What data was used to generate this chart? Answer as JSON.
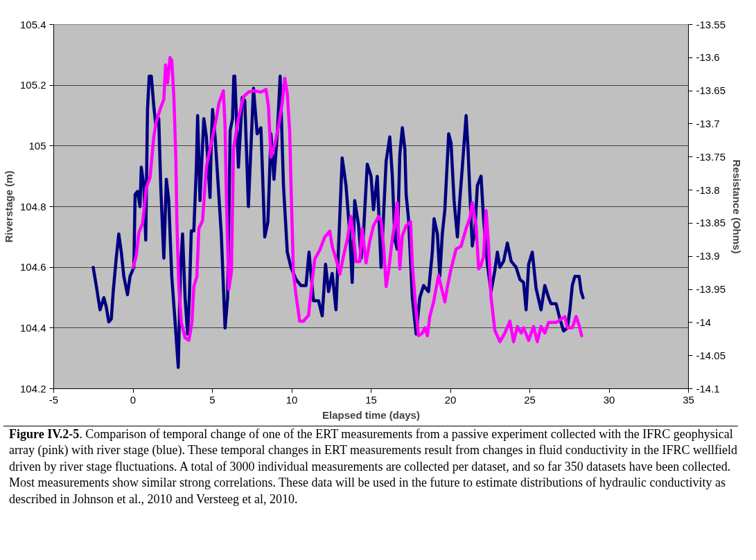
{
  "chart_data": {
    "type": "line",
    "xlabel": "Elapsed time (days)",
    "ylabel": "Riverstage (m)",
    "y2label": "Resistance (Ohms)",
    "annotations": [
      "Figure IV.2-5",
      ". Comparison of temporal change of one of the ERT measurements from a passive experiment collected with the IFRC geophysical array (pink) with river stage (blue). These temporal changes in ERT measurements result from changes in fluid conductivity in the IFRC wellfield driven by river stage fluctuations. A total of 3000 individual measurements are collected per dataset, and so far 350 datasets have been collected. Most measurements show similar strong correlations. These data will be used in the future to estimate distributions of hydraulic conductivity as described in Johnson et al., 2010 and Versteeg et al, 2010."
    ],
    "xlim": [
      -5,
      35
    ],
    "xticks": [
      -5,
      0,
      5,
      10,
      15,
      20,
      25,
      30,
      35
    ],
    "ylim": [
      104.2,
      105.4
    ],
    "yticks": [
      104.2,
      104.4,
      104.6,
      104.8,
      105,
      105.2,
      105.4
    ],
    "y2lim": [
      -14.1,
      -13.55
    ],
    "y2ticks": [
      -14.1,
      -14.05,
      -14,
      -13.95,
      -13.9,
      -13.85,
      -13.8,
      -13.75,
      -13.7,
      -13.65,
      -13.6,
      -13.55
    ],
    "grid": "y",
    "marker": "none",
    "line_style": "solid",
    "series": [
      {
        "color": "#000080",
        "axis": "y",
        "x": [
          -2.51,
          -2.32,
          -2.08,
          -1.84,
          -1.69,
          -1.53,
          -1.37,
          -1.25,
          -1.06,
          -0.9,
          -0.74,
          -0.58,
          -0.35,
          -0.19,
          0.05,
          0.13,
          0.28,
          0.44,
          0.52,
          0.68,
          0.8,
          0.91,
          1.02,
          1.15,
          1.31,
          1.43,
          1.62,
          1.75,
          1.94,
          2.1,
          2.25,
          2.44,
          2.65,
          2.85,
          2.99,
          3.12,
          3.28,
          3.44,
          3.55,
          3.67,
          3.83,
          3.99,
          4.07,
          4.22,
          4.46,
          4.62,
          4.85,
          4.93,
          5.01,
          5.17,
          5.33,
          5.56,
          5.8,
          5.96,
          6.12,
          6.27,
          6.35,
          6.41,
          6.64,
          6.88,
          7.04,
          7.27,
          7.59,
          7.82,
          8.06,
          8.3,
          8.5,
          8.69,
          8.88,
          9.09,
          9.27,
          9.48,
          9.72,
          9.95,
          10.27,
          10.58,
          10.9,
          11.09,
          11.37,
          11.69,
          11.92,
          12.13,
          12.32,
          12.55,
          12.79,
          13.03,
          13.18,
          13.42,
          13.66,
          13.81,
          13.97,
          14.21,
          14.37,
          14.52,
          14.76,
          15.0,
          15.15,
          15.39,
          15.63,
          15.95,
          16.18,
          16.34,
          16.5,
          16.65,
          16.81,
          16.97,
          17.13,
          17.21,
          17.36,
          17.6,
          17.84,
          18.07,
          18.31,
          18.62,
          18.86,
          18.97,
          19.18,
          19.33,
          19.49,
          19.65,
          19.89,
          20.04,
          20.23,
          20.44,
          20.59,
          20.75,
          20.99,
          21.11,
          21.23,
          21.38,
          21.54,
          21.7,
          21.93,
          22.09,
          22.33,
          22.56,
          22.8,
          22.96,
          23.12,
          23.35,
          23.59,
          23.83,
          24.14,
          24.38,
          24.61,
          24.77,
          24.93,
          25.16,
          25.4,
          25.71,
          25.95,
          26.19,
          26.34,
          26.66,
          26.9,
          27.13,
          27.37,
          27.53,
          27.68,
          27.84,
          28.11,
          28.24,
          28.36
        ],
        "values": [
          104.6,
          104.54,
          104.46,
          104.5,
          104.47,
          104.42,
          104.43,
          104.52,
          104.63,
          104.71,
          104.65,
          104.57,
          104.51,
          104.57,
          104.6,
          104.84,
          104.85,
          104.8,
          104.93,
          104.87,
          104.69,
          105.12,
          105.23,
          105.23,
          105.13,
          105.07,
          105.09,
          104.86,
          104.63,
          104.89,
          104.82,
          104.57,
          104.42,
          104.27,
          104.59,
          104.71,
          104.5,
          104.38,
          104.5,
          104.72,
          104.72,
          104.93,
          105.1,
          104.82,
          105.09,
          105.03,
          104.83,
          105.01,
          105.12,
          105.03,
          104.9,
          104.71,
          104.4,
          104.5,
          105.05,
          105.09,
          105.23,
          105.23,
          104.93,
          105.16,
          105.15,
          104.8,
          105.19,
          105.04,
          105.06,
          104.7,
          104.75,
          105.04,
          104.89,
          105.04,
          105.23,
          104.87,
          104.65,
          104.6,
          104.56,
          104.54,
          104.54,
          104.65,
          104.49,
          104.49,
          104.44,
          104.61,
          104.52,
          104.58,
          104.46,
          104.77,
          104.96,
          104.87,
          104.71,
          104.55,
          104.82,
          104.74,
          104.63,
          104.71,
          104.94,
          104.9,
          104.79,
          104.9,
          104.6,
          104.95,
          105.03,
          104.9,
          104.69,
          104.66,
          104.97,
          105.06,
          104.99,
          104.84,
          104.76,
          104.5,
          104.38,
          104.5,
          104.54,
          104.52,
          104.65,
          104.76,
          104.71,
          104.57,
          104.71,
          104.79,
          105.04,
          105.01,
          104.82,
          104.7,
          104.82,
          104.93,
          105.1,
          104.99,
          104.84,
          104.67,
          104.72,
          104.87,
          104.9,
          104.76,
          104.61,
          104.52,
          104.59,
          104.65,
          104.6,
          104.62,
          104.68,
          104.62,
          104.6,
          104.56,
          104.55,
          104.46,
          104.61,
          104.65,
          104.53,
          104.46,
          104.54,
          104.5,
          104.48,
          104.48,
          104.43,
          104.39,
          104.4,
          104.46,
          104.54,
          104.57,
          104.57,
          104.52,
          104.5
        ]
      },
      {
        "color": "#ff00ff",
        "axis": "y2",
        "x": [
          0.0,
          0.2,
          0.36,
          0.6,
          0.84,
          1.07,
          1.31,
          1.47,
          1.75,
          1.94,
          2.05,
          2.17,
          2.33,
          2.44,
          2.57,
          2.7,
          2.76,
          2.88,
          3.04,
          3.28,
          3.52,
          3.71,
          3.83,
          4.02,
          4.15,
          4.38,
          4.62,
          4.85,
          5.25,
          5.41,
          5.69,
          5.8,
          5.88,
          6.04,
          6.2,
          6.33,
          6.64,
          6.96,
          7.27,
          7.59,
          8.06,
          8.38,
          8.53,
          8.69,
          8.93,
          9.16,
          9.4,
          9.56,
          9.72,
          9.87,
          9.95,
          10.11,
          10.27,
          10.5,
          10.74,
          11.06,
          11.21,
          11.45,
          11.76,
          12.08,
          12.4,
          12.55,
          12.79,
          13.03,
          13.26,
          13.5,
          13.73,
          13.89,
          14.05,
          14.29,
          14.44,
          14.68,
          14.92,
          15.15,
          15.47,
          15.63,
          15.79,
          15.95,
          16.1,
          16.34,
          16.5,
          16.65,
          16.81,
          16.97,
          17.21,
          17.49,
          17.6,
          17.76,
          17.99,
          18.23,
          18.39,
          18.55,
          18.7,
          18.94,
          19.25,
          19.65,
          19.81,
          20.04,
          20.36,
          20.67,
          20.99,
          21.23,
          21.38,
          21.62,
          21.78,
          21.93,
          22.09,
          22.25,
          22.41,
          22.56,
          22.8,
          23.12,
          23.43,
          23.75,
          23.98,
          24.22,
          24.46,
          24.61,
          24.93,
          25.24,
          25.48,
          25.71,
          25.95,
          26.19,
          26.66,
          26.97,
          27.21,
          27.37,
          27.68,
          27.92,
          28.11,
          28.27
        ],
        "values": [
          -13.917,
          -13.9,
          -13.865,
          -13.85,
          -13.796,
          -13.781,
          -13.719,
          -13.696,
          -13.675,
          -13.663,
          -13.611,
          -13.638,
          -13.6,
          -13.604,
          -13.658,
          -13.754,
          -13.846,
          -13.942,
          -14.0,
          -14.023,
          -14.027,
          -14.0,
          -13.946,
          -13.931,
          -13.858,
          -13.846,
          -13.765,
          -13.738,
          -13.692,
          -13.669,
          -13.65,
          -13.704,
          -13.808,
          -13.95,
          -13.923,
          -13.738,
          -13.692,
          -13.659,
          -13.652,
          -13.65,
          -13.652,
          -13.648,
          -13.673,
          -13.75,
          -13.731,
          -13.704,
          -13.669,
          -13.631,
          -13.654,
          -13.711,
          -13.788,
          -13.927,
          -13.958,
          -13.998,
          -13.998,
          -13.989,
          -13.954,
          -13.904,
          -13.891,
          -13.871,
          -13.862,
          -13.885,
          -13.904,
          -13.927,
          -13.9,
          -13.875,
          -13.84,
          -13.869,
          -13.908,
          -13.908,
          -13.858,
          -13.91,
          -13.877,
          -13.854,
          -13.84,
          -13.846,
          -13.885,
          -13.946,
          -13.923,
          -13.873,
          -13.85,
          -13.819,
          -13.919,
          -13.869,
          -13.854,
          -13.848,
          -13.912,
          -13.962,
          -14.02,
          -14.016,
          -14.008,
          -14.02,
          -13.991,
          -13.969,
          -13.929,
          -13.969,
          -13.946,
          -13.919,
          -13.889,
          -13.885,
          -13.858,
          -13.842,
          -13.819,
          -13.854,
          -13.919,
          -13.914,
          -13.9,
          -13.831,
          -13.885,
          -13.962,
          -14.012,
          -14.029,
          -14.016,
          -13.998,
          -14.029,
          -14.006,
          -14.016,
          -14.008,
          -14.027,
          -14.006,
          -14.029,
          -14.006,
          -14.016,
          -14.0,
          -14.0,
          -13.995,
          -13.991,
          -14.008,
          -14.008,
          -13.991,
          -14.004,
          -14.02
        ]
      }
    ]
  }
}
